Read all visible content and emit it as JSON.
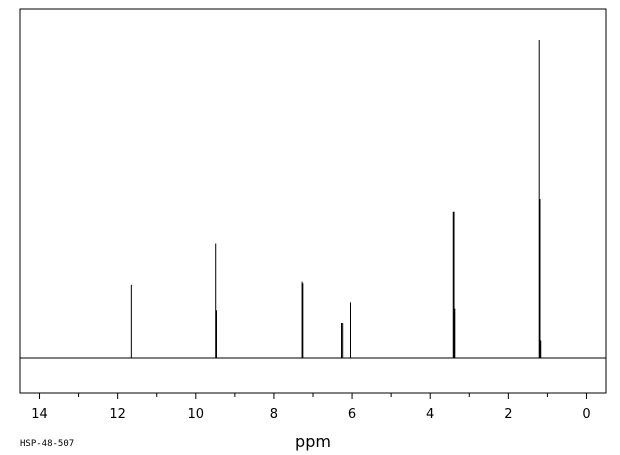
{
  "chart_data": {
    "type": "line",
    "title": "",
    "xlabel": "ppm",
    "ylabel": "",
    "sample_code": "HSP-48-507",
    "xlim": [
      14.5,
      -0.5
    ],
    "x_reversed": true,
    "ylim": [
      0,
      1
    ],
    "grid": false,
    "x_ticks": [
      14,
      12,
      10,
      8,
      6,
      4,
      2,
      0
    ],
    "x_tick_labels": [
      "14",
      "12",
      "10",
      "8",
      "6",
      "4",
      "2",
      "0"
    ],
    "peaks": [
      {
        "ppm": 11.65,
        "height": 0.23
      },
      {
        "ppm": 9.49,
        "height": 0.36
      },
      {
        "ppm": 9.47,
        "height": 0.15
      },
      {
        "ppm": 7.28,
        "height": 0.24
      },
      {
        "ppm": 7.26,
        "height": 0.235
      },
      {
        "ppm": 6.27,
        "height": 0.11
      },
      {
        "ppm": 6.24,
        "height": 0.11
      },
      {
        "ppm": 6.04,
        "height": 0.175
      },
      {
        "ppm": 3.41,
        "height": 0.46
      },
      {
        "ppm": 3.39,
        "height": 0.46
      },
      {
        "ppm": 3.37,
        "height": 0.155
      },
      {
        "ppm": 1.21,
        "height": 1.0
      },
      {
        "ppm": 1.19,
        "height": 0.5
      },
      {
        "ppm": 1.17,
        "height": 0.055
      }
    ]
  }
}
